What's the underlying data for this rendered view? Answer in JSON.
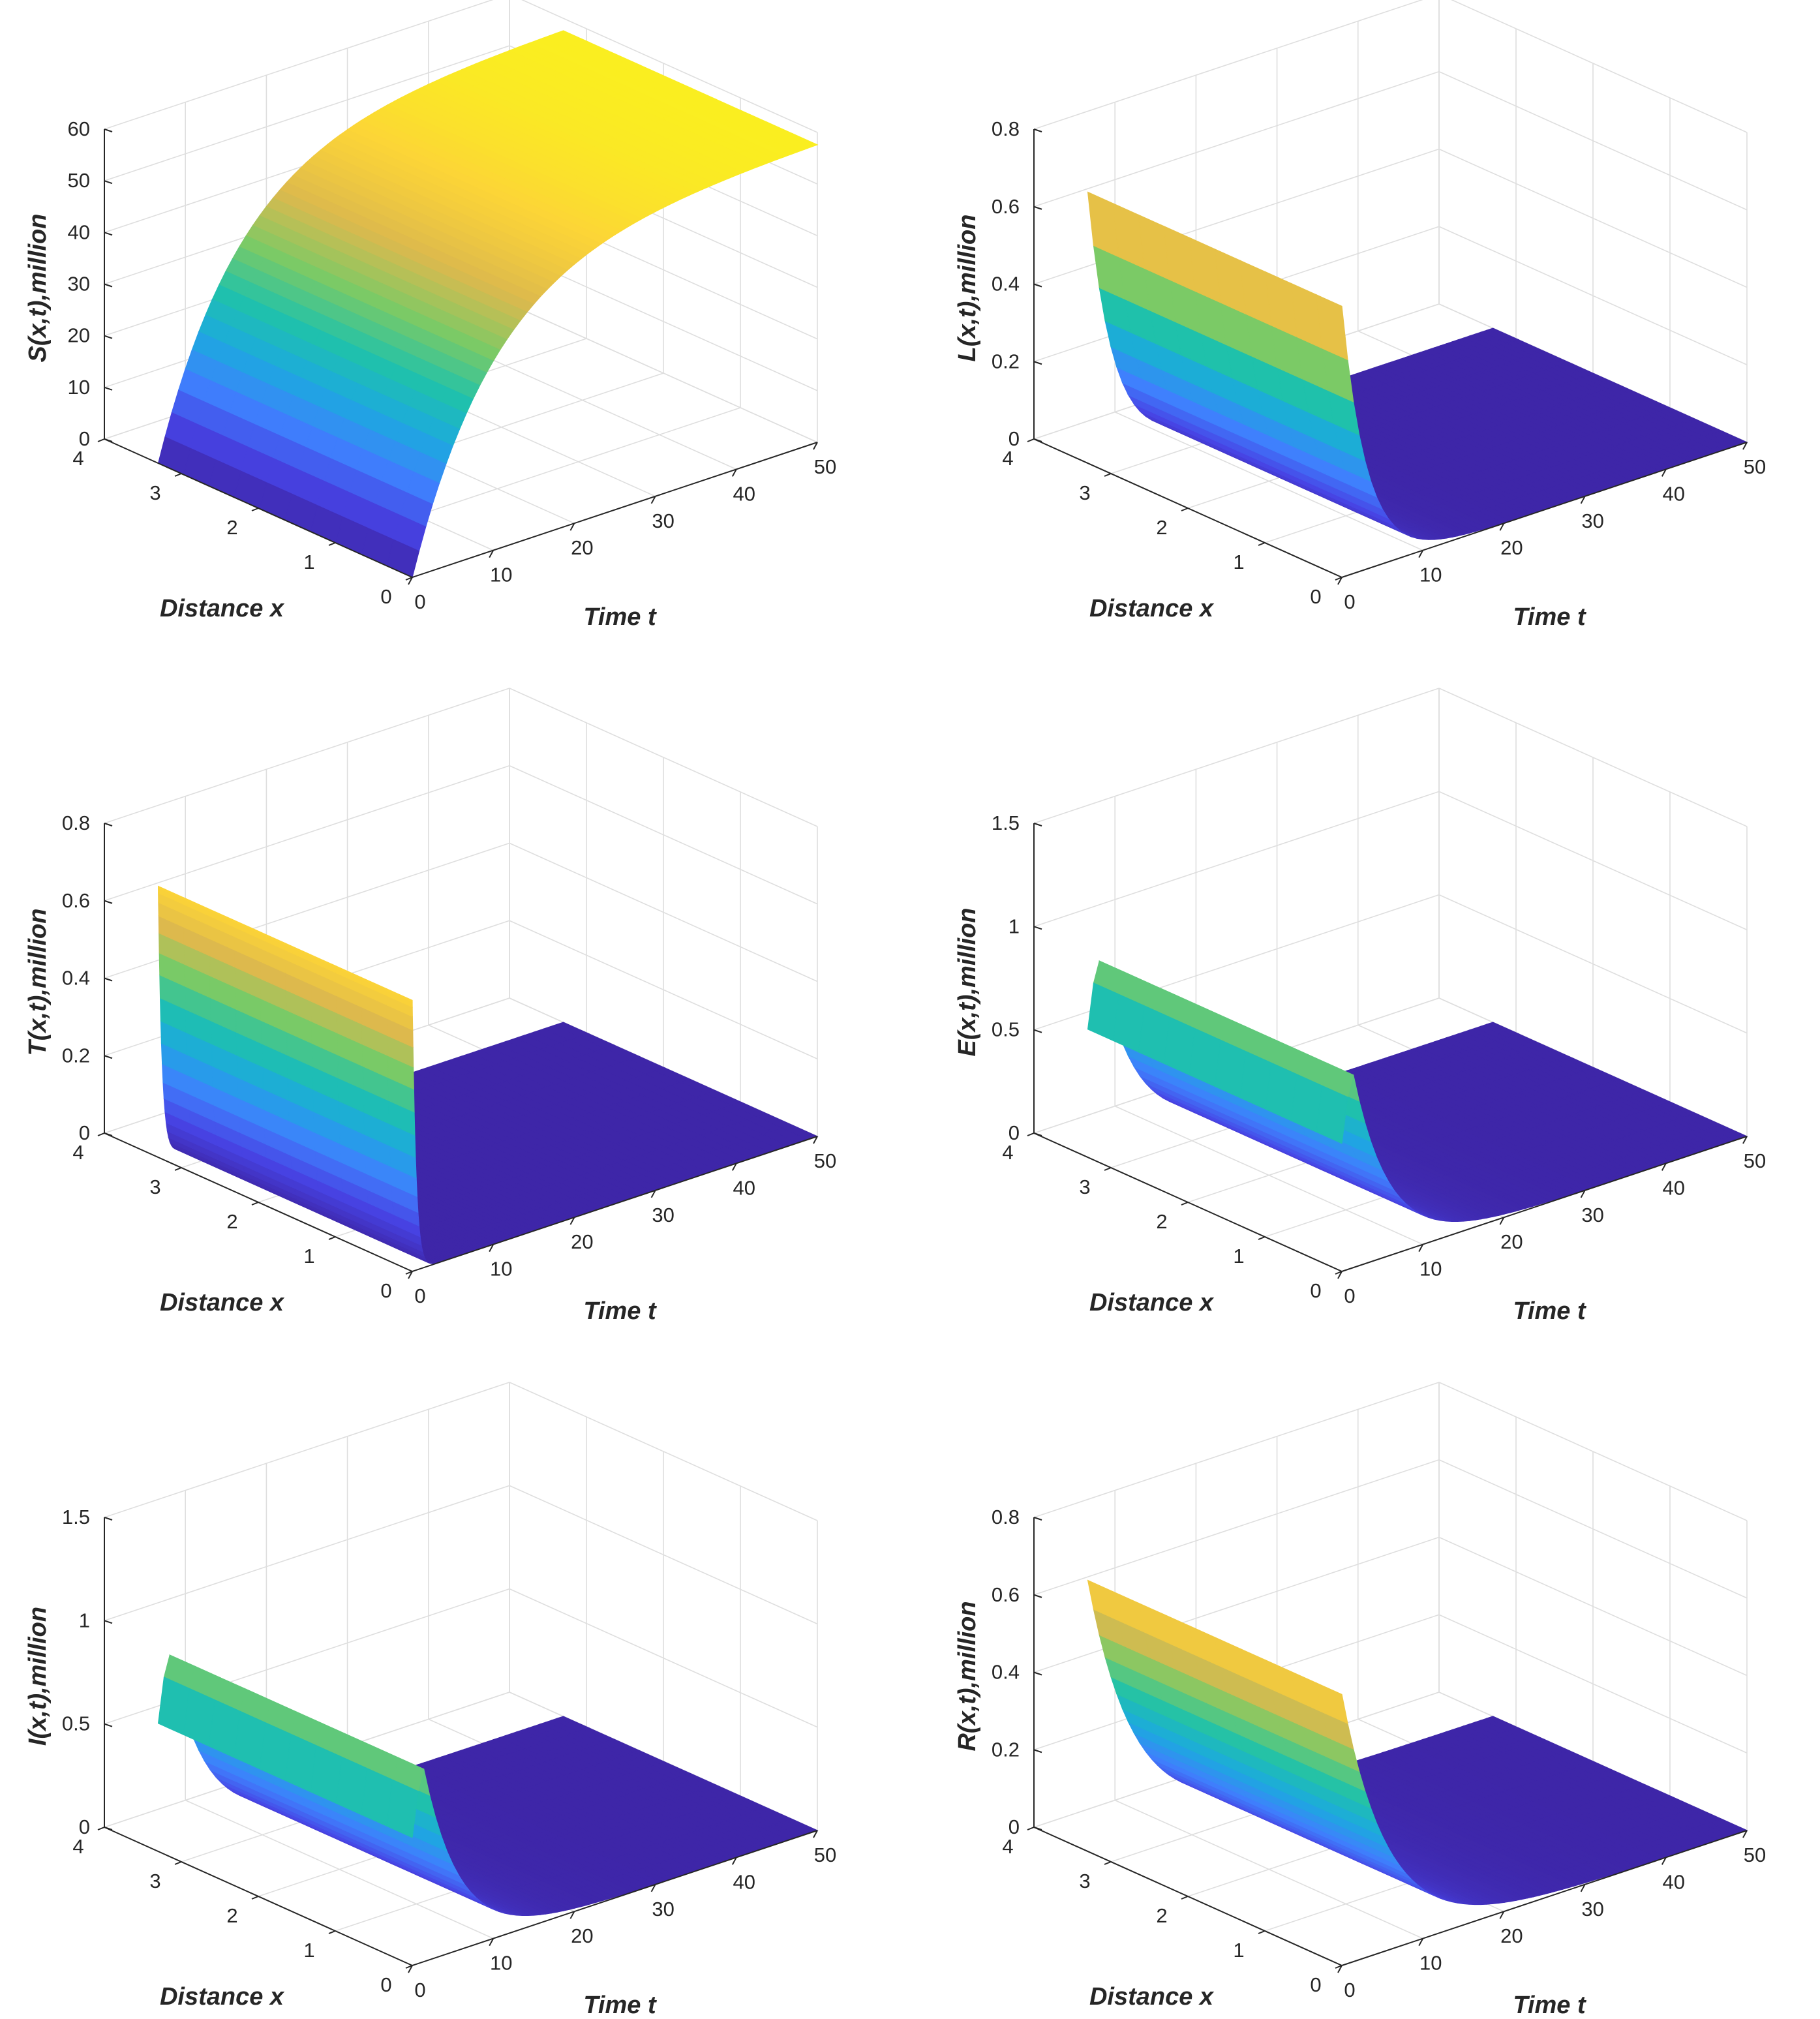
{
  "figure": {
    "colormap": [
      "#3e26a8",
      "#4743e4",
      "#3f80fd",
      "#1ca9df",
      "#1fc2aa",
      "#7bca66",
      "#ddb94d",
      "#fcd437",
      "#f9fb15"
    ],
    "grid_color": "#dedede",
    "axis_color": "#262626"
  },
  "chart_data": [
    {
      "type": "surface",
      "title": "",
      "zlabel": "S(x,t),million",
      "xlabel": "Distance x",
      "tlabel": "Time t",
      "xlim": [
        0,
        4
      ],
      "tlim": [
        0,
        50
      ],
      "zlim": [
        0,
        60
      ],
      "xticks": [
        0,
        1,
        2,
        3,
        4
      ],
      "tticks": [
        0,
        10,
        20,
        30,
        40,
        50
      ],
      "zticks": [
        0,
        10,
        20,
        30,
        40,
        50,
        60
      ],
      "surface": {
        "x_range": [
          0,
          3.3
        ],
        "t_range": [
          0,
          50
        ],
        "profile": "rise",
        "peak": 58,
        "rate": 0.1
      },
      "mesh": false
    },
    {
      "type": "surface",
      "title": "",
      "zlabel": "L(x,t),million",
      "xlabel": "Distance x",
      "tlabel": "Time t",
      "xlim": [
        0,
        4
      ],
      "tlim": [
        0,
        50
      ],
      "zlim": [
        0,
        0.8
      ],
      "xticks": [
        0,
        1,
        2,
        3,
        4
      ],
      "tticks": [
        0,
        10,
        20,
        30,
        40,
        50
      ],
      "zticks": [
        0,
        0.2,
        0.4,
        0.6,
        0.8
      ],
      "surface": {
        "x_range": [
          0,
          3.3
        ],
        "t_range": [
          0,
          50
        ],
        "profile": "decay",
        "peak": 0.7,
        "rate": 0.32
      },
      "mesh": true
    },
    {
      "type": "surface",
      "title": "",
      "zlabel": "T(x,t),million",
      "xlabel": "Distance x",
      "tlabel": "Time t",
      "xlim": [
        0,
        4
      ],
      "tlim": [
        0,
        50
      ],
      "zlim": [
        0,
        0.8
      ],
      "xticks": [
        0,
        1,
        2,
        3,
        4
      ],
      "tticks": [
        0,
        10,
        20,
        30,
        40,
        50
      ],
      "zticks": [
        0,
        0.2,
        0.4,
        0.6,
        0.8
      ],
      "surface": {
        "x_range": [
          0,
          3.3
        ],
        "t_range": [
          0,
          50
        ],
        "profile": "decay",
        "peak": 0.7,
        "rate": 2.2
      },
      "mesh": true
    },
    {
      "type": "surface",
      "title": "",
      "zlabel": "E(x,t),million",
      "xlabel": "Distance x",
      "tlabel": "Time t",
      "xlim": [
        0,
        4
      ],
      "tlim": [
        0,
        50
      ],
      "zlim": [
        0,
        1.5
      ],
      "xticks": [
        0,
        1,
        2,
        3,
        4
      ],
      "tticks": [
        0,
        10,
        20,
        30,
        40,
        50
      ],
      "zticks": [
        0,
        0.5,
        1,
        1.5
      ],
      "surface": {
        "x_range": [
          0,
          3.3
        ],
        "t_range": [
          0,
          50
        ],
        "profile": "hump",
        "peak": 0.98,
        "start": 0.62,
        "rate": 0.22
      },
      "mesh": true
    },
    {
      "type": "surface",
      "title": "",
      "zlabel": "I(x,t),million",
      "xlabel": "Distance x",
      "tlabel": "Time t",
      "xlim": [
        0,
        4
      ],
      "tlim": [
        0,
        50
      ],
      "zlim": [
        0,
        1.5
      ],
      "xticks": [
        0,
        1,
        2,
        3,
        4
      ],
      "tticks": [
        0,
        10,
        20,
        30,
        40,
        50
      ],
      "zticks": [
        0,
        0.5,
        1,
        1.5
      ],
      "surface": {
        "x_range": [
          0,
          3.3
        ],
        "t_range": [
          0,
          50
        ],
        "profile": "hump",
        "peak": 0.98,
        "start": 0.62,
        "rate": 0.22
      },
      "mesh": true
    },
    {
      "type": "surface",
      "title": "",
      "zlabel": "R(x,t),million",
      "xlabel": "Distance x",
      "tlabel": "Time t",
      "xlim": [
        0,
        4
      ],
      "tlim": [
        0,
        50
      ],
      "zlim": [
        0,
        0.8
      ],
      "xticks": [
        0,
        1,
        2,
        3,
        4
      ],
      "tticks": [
        0,
        10,
        20,
        30,
        40,
        50
      ],
      "zticks": [
        0,
        0.2,
        0.4,
        0.6,
        0.8
      ],
      "surface": {
        "x_range": [
          0,
          3.3
        ],
        "t_range": [
          0,
          50
        ],
        "profile": "decay",
        "peak": 0.7,
        "rate": 0.17
      },
      "mesh": false
    }
  ]
}
